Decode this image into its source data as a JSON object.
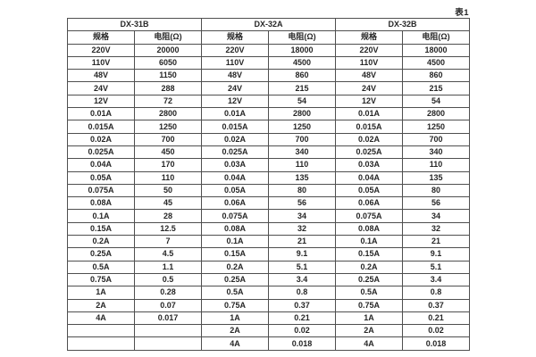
{
  "page": {
    "table_label": "表1"
  },
  "table": {
    "groups": [
      {
        "name": "DX-31B",
        "col_headers": [
          "规格",
          "电阻(Ω)"
        ]
      },
      {
        "name": "DX-32A",
        "col_headers": [
          "规格",
          "电阻(Ω)"
        ]
      },
      {
        "name": "DX-32B",
        "col_headers": [
          "规格",
          "电阻(Ω)"
        ]
      }
    ],
    "rows": [
      [
        "220V",
        "20000",
        "220V",
        "18000",
        "220V",
        "18000"
      ],
      [
        "110V",
        "6050",
        "110V",
        "4500",
        "110V",
        "4500"
      ],
      [
        "48V",
        "1150",
        "48V",
        "860",
        "48V",
        "860"
      ],
      [
        "24V",
        "288",
        "24V",
        "215",
        "24V",
        "215"
      ],
      [
        "12V",
        "72",
        "12V",
        "54",
        "12V",
        "54"
      ],
      [
        "0.01A",
        "2800",
        "0.01A",
        "2800",
        "0.01A",
        "2800"
      ],
      [
        "0.015A",
        "1250",
        "0.015A",
        "1250",
        "0.015A",
        "1250"
      ],
      [
        "0.02A",
        "700",
        "0.02A",
        "700",
        "0.02A",
        "700"
      ],
      [
        "0.025A",
        "450",
        "0.025A",
        "340",
        "0.025A",
        "340"
      ],
      [
        "0.04A",
        "170",
        "0.03A",
        "110",
        "0.03A",
        "110"
      ],
      [
        "0.05A",
        "110",
        "0.04A",
        "135",
        "0.04A",
        "135"
      ],
      [
        "0.075A",
        "50",
        "0.05A",
        "80",
        "0.05A",
        "80"
      ],
      [
        "0.08A",
        "45",
        "0.06A",
        "56",
        "0.06A",
        "56"
      ],
      [
        "0.1A",
        "28",
        "0.075A",
        "34",
        "0.075A",
        "34"
      ],
      [
        "0.15A",
        "12.5",
        "0.08A",
        "32",
        "0.08A",
        "32"
      ],
      [
        "0.2A",
        "7",
        "0.1A",
        "21",
        "0.1A",
        "21"
      ],
      [
        "0.25A",
        "4.5",
        "0.15A",
        "9.1",
        "0.15A",
        "9.1"
      ],
      [
        "0.5A",
        "1.1",
        "0.2A",
        "5.1",
        "0.2A",
        "5.1"
      ],
      [
        "0.75A",
        "0.5",
        "0.25A",
        "3.4",
        "0.25A",
        "3.4"
      ],
      [
        "1A",
        "0.28",
        "0.5A",
        "0.8",
        "0.5A",
        "0.8"
      ],
      [
        "2A",
        "0.07",
        "0.75A",
        "0.37",
        "0.75A",
        "0.37"
      ],
      [
        "4A",
        "0.017",
        "1A",
        "0.21",
        "1A",
        "0.21"
      ],
      [
        "",
        "",
        "2A",
        "0.02",
        "2A",
        "0.02"
      ],
      [
        "",
        "",
        "4A",
        "0.018",
        "4A",
        "0.018"
      ]
    ]
  }
}
